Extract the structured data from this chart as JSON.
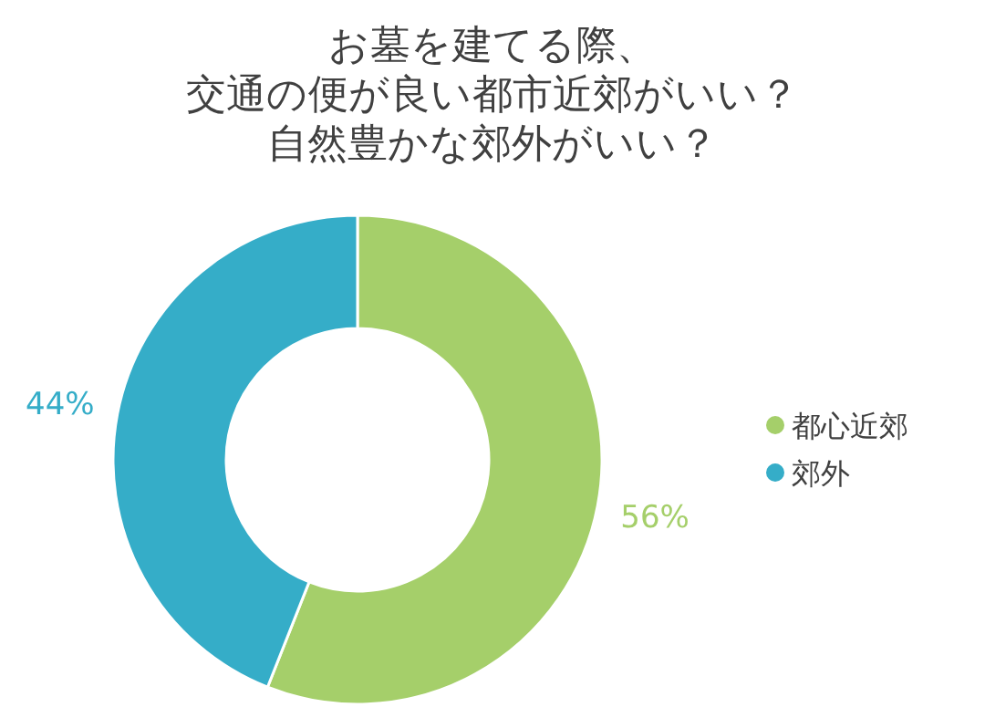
{
  "chart_data": {
    "type": "donut",
    "title": "お墓を建てる際、交通の便が良い都市近郊がいい？自然豊かな郊外がいい？",
    "categories": [
      "都心近郊",
      "郊外"
    ],
    "values": [
      56,
      44
    ],
    "colors": [
      "#a5cf6a",
      "#35adc8"
    ],
    "value_labels": [
      "56%",
      "44%"
    ],
    "legend": "right"
  }
}
